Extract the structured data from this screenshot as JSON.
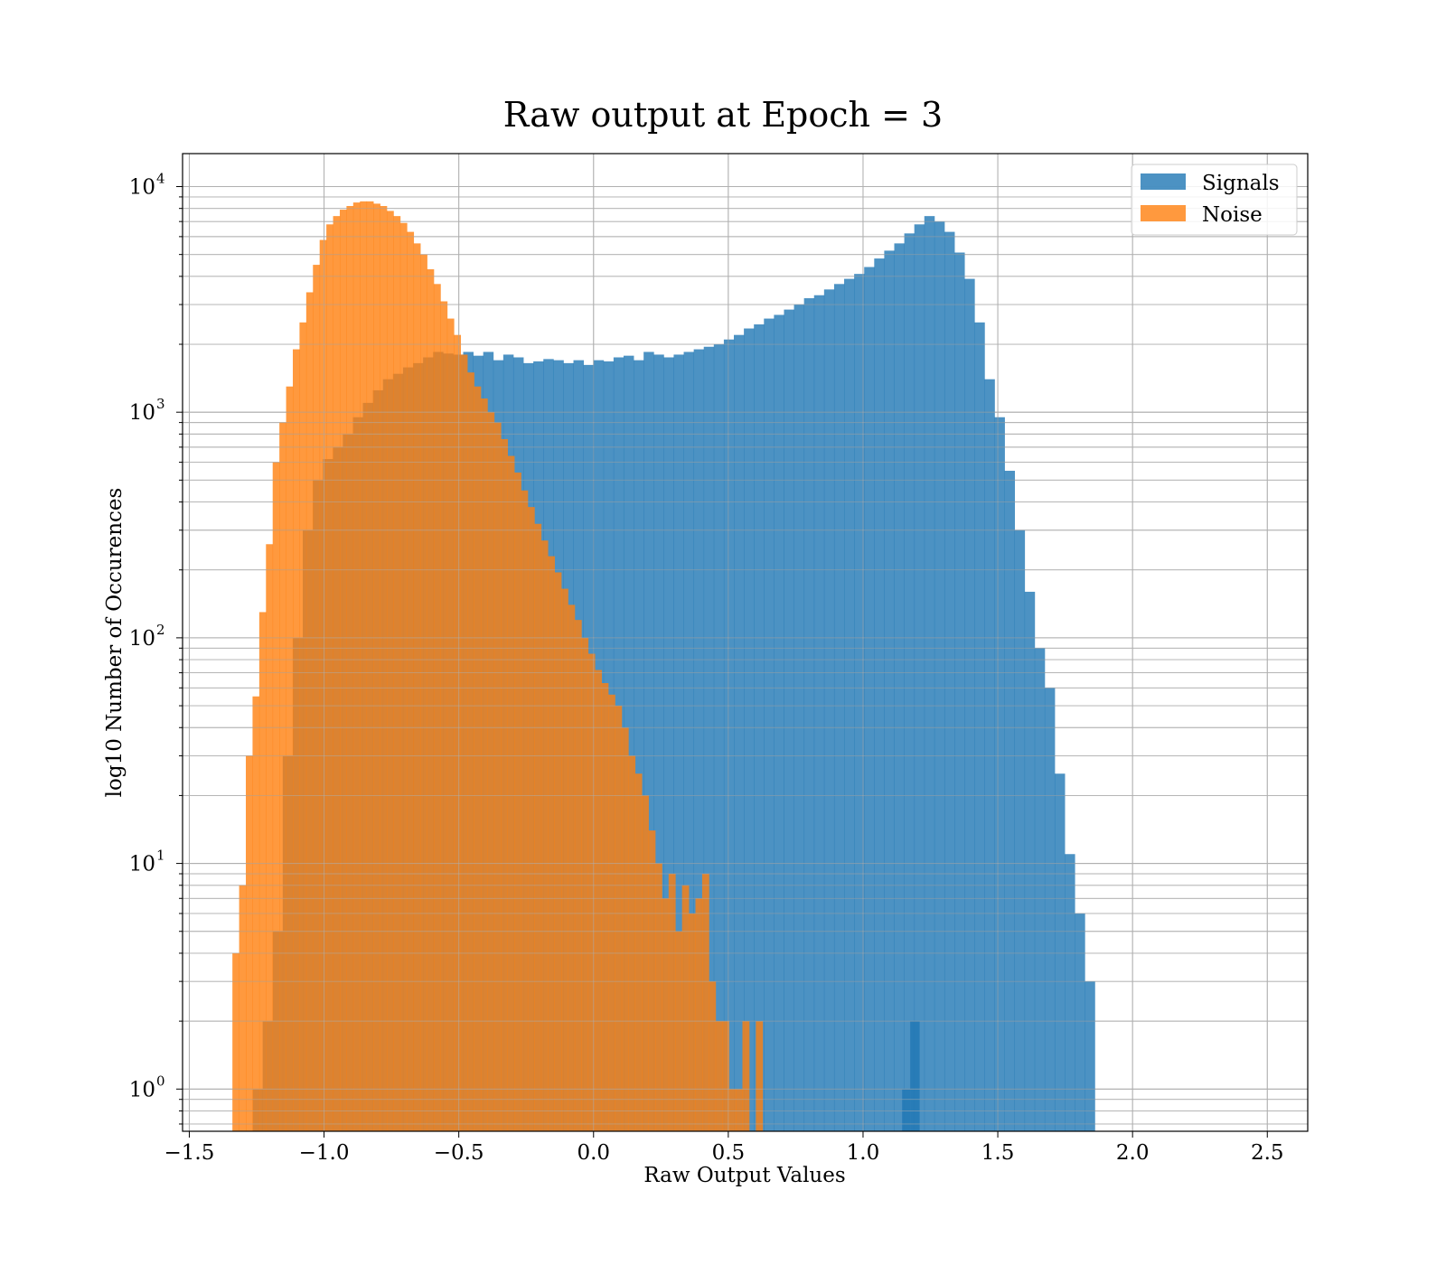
{
  "chart_data": {
    "type": "bar",
    "title": "Raw output at Epoch = 3",
    "xlabel": "Raw Output Values",
    "ylabel": "log10 Number of Occurences",
    "yscale": "log",
    "xlim": [
      -1.525,
      2.65
    ],
    "ylim": [
      0.65,
      14000
    ],
    "grid": true,
    "legend_position": "top-right",
    "x_ticks": [
      -1.5,
      -1.0,
      -0.5,
      0.0,
      0.5,
      1.0,
      1.5,
      2.0,
      2.5
    ],
    "x_tick_labels": [
      "−1.5",
      "−1.0",
      "−0.5",
      "0.0",
      "0.5",
      "1.0",
      "1.5",
      "2.0",
      "2.5"
    ],
    "y_tick_base": "10",
    "y_tick_exponents": [
      "0",
      "1",
      "2",
      "3",
      "4"
    ],
    "series": [
      {
        "name": "Signals",
        "color": "#1f77b4",
        "opacity": 0.8,
        "bin_start": -1.265,
        "bin_width": 0.0372,
        "values": [
          1,
          2,
          5,
          30,
          100,
          300,
          500,
          620,
          700,
          800,
          950,
          1100,
          1250,
          1400,
          1480,
          1580,
          1650,
          1750,
          1850,
          1820,
          1800,
          1850,
          1780,
          1850,
          1700,
          1800,
          1750,
          1650,
          1680,
          1720,
          1700,
          1650,
          1700,
          1620,
          1700,
          1680,
          1750,
          1780,
          1700,
          1850,
          1800,
          1750,
          1800,
          1850,
          1900,
          1950,
          2000,
          2100,
          2200,
          2350,
          2450,
          2600,
          2700,
          2850,
          3000,
          3200,
          3300,
          3500,
          3700,
          3900,
          4100,
          4400,
          4800,
          5200,
          5600,
          6200,
          6800,
          7400,
          7000,
          6300,
          5100,
          3900,
          2500,
          1400,
          950,
          550,
          300,
          160,
          90,
          60,
          25,
          11,
          6,
          3
        ],
        "gaps": [
          {
            "range": [
              1.145,
              1.175
            ],
            "value": 1
          },
          {
            "range": [
              1.175,
              1.21
            ],
            "value": 2
          }
        ]
      },
      {
        "name": "Noise",
        "color": "#ff7f0e",
        "opacity": 0.8,
        "bin_start": -1.34,
        "bin_width": 0.0249,
        "values": [
          4,
          8,
          30,
          55,
          130,
          260,
          600,
          900,
          1300,
          1900,
          2500,
          3400,
          4500,
          5800,
          6800,
          7400,
          7900,
          8200,
          8500,
          8600,
          8600,
          8400,
          8200,
          7800,
          7400,
          6900,
          6300,
          5600,
          5000,
          4300,
          3700,
          3100,
          2600,
          2200,
          1800,
          1500,
          1300,
          1150,
          1000,
          900,
          760,
          640,
          540,
          450,
          380,
          320,
          270,
          230,
          195,
          165,
          140,
          120,
          100,
          85,
          72,
          63,
          56,
          50,
          40,
          30,
          25,
          20,
          14,
          10,
          7,
          9,
          5,
          8,
          6,
          7,
          9,
          3,
          2,
          2,
          1,
          1,
          2,
          0,
          2
        ]
      }
    ]
  }
}
